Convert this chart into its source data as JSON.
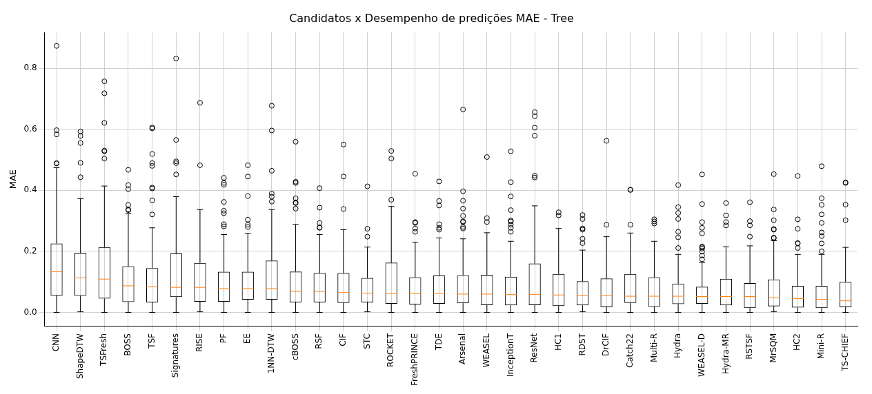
{
  "chart_data": {
    "type": "box",
    "title": "Candidatos x Desempenho de predições MAE - Tree",
    "ylabel": "MAE",
    "categories": [
      "CNN",
      "ShapeDTW",
      "TSFresh",
      "BOSS",
      "TSF",
      "Signatures",
      "RISE",
      "PF",
      "EE",
      "1NN-DTW",
      "cBOSS",
      "RSF",
      "CIF",
      "STC",
      "ROCKET",
      "FreshPRINCE",
      "TDE",
      "Arsenal",
      "WEASEL",
      "InceptionT",
      "ResNet",
      "HC1",
      "RDST",
      "DrCIF",
      "Catch22",
      "Multi-R",
      "Hydra",
      "WEASEL-D",
      "Hydra-MR",
      "RSTSF",
      "MrSQM",
      "HC2",
      "Mini-R",
      "TS-CHIEF"
    ],
    "boxes": [
      {
        "low": 0,
        "q1": 0.055,
        "median": 0.133,
        "q3": 0.226,
        "high": 0.474,
        "outliers": [
          0.488,
          0.489,
          0.583,
          0.597,
          0.873
        ]
      },
      {
        "low": 0.002,
        "q1": 0.054,
        "median": 0.113,
        "q3": 0.195,
        "high": 0.373,
        "outliers": [
          0.443,
          0.49,
          0.555,
          0.578,
          0.593
        ]
      },
      {
        "low": 0,
        "q1": 0.045,
        "median": 0.109,
        "q3": 0.214,
        "high": 0.414,
        "outliers": [
          0.504,
          0.528,
          0.53,
          0.621,
          0.718,
          0.757
        ]
      },
      {
        "low": 0,
        "q1": 0.034,
        "median": 0.087,
        "q3": 0.151,
        "high": 0.324,
        "outliers": [
          0.335,
          0.337,
          0.352,
          0.404,
          0.417,
          0.467
        ]
      },
      {
        "low": 0,
        "q1": 0.033,
        "median": 0.084,
        "q3": 0.145,
        "high": 0.277,
        "outliers": [
          0.321,
          0.367,
          0.406,
          0.409,
          0.48,
          0.489,
          0.519,
          0.603,
          0.606
        ]
      },
      {
        "low": 0,
        "q1": 0.05,
        "median": 0.082,
        "q3": 0.193,
        "high": 0.379,
        "outliers": [
          0.452,
          0.489,
          0.495,
          0.565,
          0.832
        ]
      },
      {
        "low": 0.002,
        "q1": 0.035,
        "median": 0.082,
        "q3": 0.162,
        "high": 0.337,
        "outliers": [
          0.482,
          0.687
        ]
      },
      {
        "low": 0,
        "q1": 0.035,
        "median": 0.078,
        "q3": 0.133,
        "high": 0.255,
        "outliers": [
          0.282,
          0.289,
          0.325,
          0.333,
          0.362,
          0.418,
          0.424,
          0.441
        ]
      },
      {
        "low": 0,
        "q1": 0.042,
        "median": 0.078,
        "q3": 0.133,
        "high": 0.259,
        "outliers": [
          0.28,
          0.287,
          0.304,
          0.381,
          0.445,
          0.482
        ]
      },
      {
        "low": 0,
        "q1": 0.042,
        "median": 0.078,
        "q3": 0.17,
        "high": 0.337,
        "outliers": [
          0.363,
          0.379,
          0.389,
          0.464,
          0.596,
          0.677
        ]
      },
      {
        "low": 0,
        "q1": 0.033,
        "median": 0.069,
        "q3": 0.134,
        "high": 0.288,
        "outliers": [
          0.34,
          0.358,
          0.36,
          0.374,
          0.424,
          0.428,
          0.559
        ]
      },
      {
        "low": 0,
        "q1": 0.033,
        "median": 0.069,
        "q3": 0.129,
        "high": 0.255,
        "outliers": [
          0.277,
          0.278,
          0.293,
          0.343,
          0.407
        ]
      },
      {
        "low": 0,
        "q1": 0.031,
        "median": 0.065,
        "q3": 0.129,
        "high": 0.271,
        "outliers": [
          0.339,
          0.445,
          0.55
        ]
      },
      {
        "low": 0.002,
        "q1": 0.033,
        "median": 0.063,
        "q3": 0.113,
        "high": 0.214,
        "outliers": [
          0.248,
          0.274,
          0.413
        ]
      },
      {
        "low": 0,
        "q1": 0.028,
        "median": 0.062,
        "q3": 0.163,
        "high": 0.347,
        "outliers": [
          0.369,
          0.504,
          0.529
        ]
      },
      {
        "low": 0,
        "q1": 0.026,
        "median": 0.062,
        "q3": 0.115,
        "high": 0.23,
        "outliers": [
          0.264,
          0.275,
          0.293,
          0.296,
          0.454
        ]
      },
      {
        "low": 0,
        "q1": 0.028,
        "median": 0.062,
        "q3": 0.121,
        "high": 0.244,
        "outliers": [
          0.271,
          0.277,
          0.289,
          0.35,
          0.365,
          0.429
        ]
      },
      {
        "low": 0,
        "q1": 0.03,
        "median": 0.06,
        "q3": 0.122,
        "high": 0.241,
        "outliers": [
          0.275,
          0.28,
          0.296,
          0.298,
          0.316,
          0.34,
          0.366,
          0.397,
          0.665
        ]
      },
      {
        "low": 0,
        "q1": 0.024,
        "median": 0.06,
        "q3": 0.123,
        "high": 0.261,
        "outliers": [
          0.296,
          0.309,
          0.509
        ]
      },
      {
        "low": 0,
        "q1": 0.023,
        "median": 0.059,
        "q3": 0.117,
        "high": 0.233,
        "outliers": [
          0.264,
          0.277,
          0.287,
          0.298,
          0.301,
          0.335,
          0.38,
          0.427,
          0.528
        ]
      },
      {
        "low": 0,
        "q1": 0.024,
        "median": 0.059,
        "q3": 0.16,
        "high": 0.349,
        "outliers": [
          0.442,
          0.448,
          0.579,
          0.605,
          0.643,
          0.656
        ]
      },
      {
        "low": 0,
        "q1": 0.021,
        "median": 0.057,
        "q3": 0.126,
        "high": 0.275,
        "outliers": [
          0.318,
          0.328
        ]
      },
      {
        "low": 0.002,
        "q1": 0.023,
        "median": 0.056,
        "q3": 0.102,
        "high": 0.204,
        "outliers": [
          0.227,
          0.241,
          0.271,
          0.275,
          0.306,
          0.319
        ]
      },
      {
        "low": 0,
        "q1": 0.017,
        "median": 0.055,
        "q3": 0.111,
        "high": 0.248,
        "outliers": [
          0.287,
          0.562
        ]
      },
      {
        "low": 0,
        "q1": 0.031,
        "median": 0.053,
        "q3": 0.126,
        "high": 0.26,
        "outliers": [
          0.287,
          0.401,
          0.402
        ]
      },
      {
        "low": 0,
        "q1": 0.018,
        "median": 0.053,
        "q3": 0.115,
        "high": 0.233,
        "outliers": [
          0.291,
          0.298,
          0.305
        ]
      },
      {
        "low": 0,
        "q1": 0.027,
        "median": 0.053,
        "q3": 0.094,
        "high": 0.19,
        "outliers": [
          0.211,
          0.246,
          0.264,
          0.306,
          0.326,
          0.345,
          0.417
        ]
      },
      {
        "low": 0,
        "q1": 0.028,
        "median": 0.052,
        "q3": 0.084,
        "high": 0.163,
        "outliers": [
          0.174,
          0.186,
          0.199,
          0.209,
          0.213,
          0.216,
          0.259,
          0.277,
          0.296,
          0.355,
          0.452
        ]
      },
      {
        "low": 0,
        "q1": 0.023,
        "median": 0.052,
        "q3": 0.11,
        "high": 0.215,
        "outliers": [
          0.285,
          0.296,
          0.318,
          0.358
        ]
      },
      {
        "low": 0,
        "q1": 0.014,
        "median": 0.052,
        "q3": 0.096,
        "high": 0.218,
        "outliers": [
          0.248,
          0.285,
          0.299,
          0.361
        ]
      },
      {
        "low": 0.002,
        "q1": 0.02,
        "median": 0.048,
        "q3": 0.108,
        "high": 0.235,
        "outliers": [
          0.243,
          0.245,
          0.271,
          0.273,
          0.302,
          0.337,
          0.453
        ]
      },
      {
        "low": 0,
        "q1": 0.016,
        "median": 0.045,
        "q3": 0.087,
        "high": 0.19,
        "outliers": [
          0.211,
          0.226,
          0.227,
          0.274,
          0.305,
          0.447
        ]
      },
      {
        "low": 0,
        "q1": 0.014,
        "median": 0.043,
        "q3": 0.087,
        "high": 0.19,
        "outliers": [
          0.2,
          0.226,
          0.25,
          0.262,
          0.293,
          0.321,
          0.352,
          0.374,
          0.479
        ]
      },
      {
        "low": 0,
        "q1": 0.017,
        "median": 0.038,
        "q3": 0.1,
        "high": 0.213,
        "outliers": [
          0.302,
          0.353,
          0.424,
          0.426
        ]
      }
    ],
    "ylim": [
      -0.044,
      0.917
    ],
    "yticks": [
      {
        "value": 0,
        "label": "0.0"
      },
      0.2,
      0.4,
      0.6,
      0.8
    ],
    "grid": true,
    "marker": "circle"
  }
}
